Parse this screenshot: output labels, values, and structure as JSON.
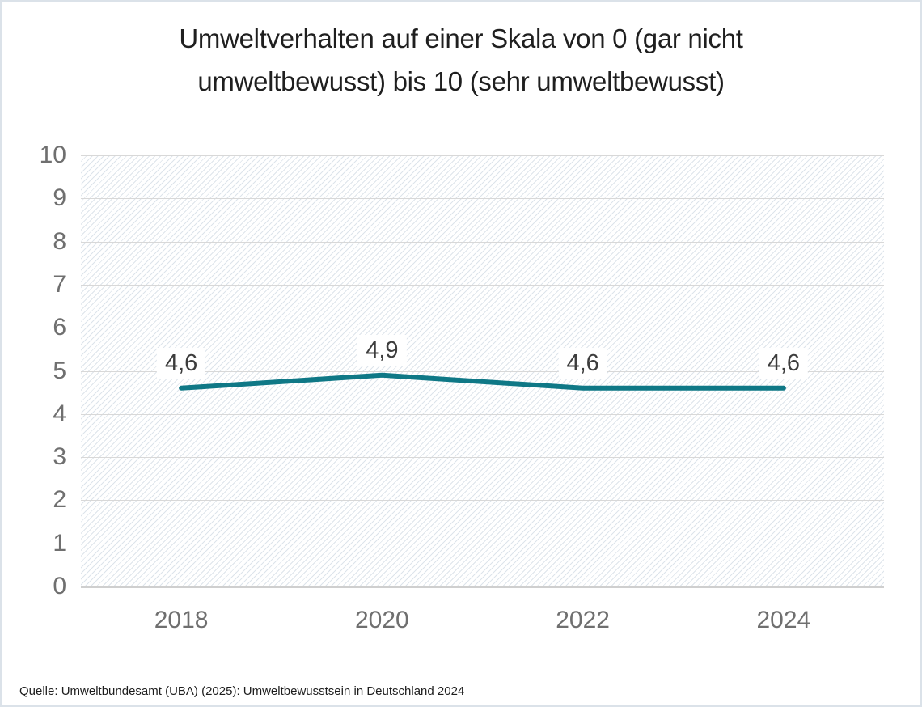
{
  "source": "Quelle: Umweltbundesamt (UBA) (2025): Umweltbewusstsein in Deutschland 2024",
  "chart_data": {
    "type": "line",
    "title": "Umweltverhalten auf einer Skala von 0 (gar nicht umweltbewusst) bis 10 (sehr umweltbewusst)",
    "categories": [
      "2018",
      "2020",
      "2022",
      "2024"
    ],
    "series": [
      {
        "name": "Umweltverhalten",
        "values": [
          4.6,
          4.9,
          4.6,
          4.6
        ]
      }
    ],
    "value_labels": [
      "4,6",
      "4,9",
      "4,6",
      "4,6"
    ],
    "yticks": [
      10,
      9,
      8,
      7,
      6,
      5,
      4,
      3,
      2,
      1,
      0
    ],
    "ylim": [
      0,
      10
    ],
    "xlabel": "",
    "ylabel": "",
    "grid": "horizontal",
    "legend": "none",
    "line_color": "#0f7886",
    "grid_color": "#d8d8d8",
    "hatch_color": "#dde4eb",
    "axis_text_color": "#6f6f6f",
    "label_text_color": "#3d3d3d"
  }
}
